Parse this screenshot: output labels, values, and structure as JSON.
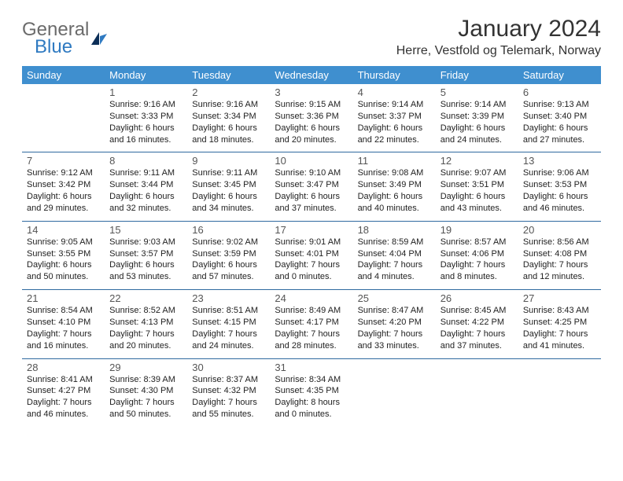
{
  "brand": {
    "word1": "General",
    "word2": "Blue"
  },
  "title": "January 2024",
  "location": "Herre, Vestfold og Telemark, Norway",
  "dayHeaders": [
    "Sunday",
    "Monday",
    "Tuesday",
    "Wednesday",
    "Thursday",
    "Friday",
    "Saturday"
  ],
  "colors": {
    "headerBg": "#3f8fcf",
    "headerText": "#ffffff",
    "rowBorder": "#2f6aa0",
    "textGray": "#6b6b6b",
    "brandBlue": "#2f7ac1"
  },
  "weeks": [
    [
      null,
      {
        "n": "1",
        "sr": "Sunrise: 9:16 AM",
        "ss": "Sunset: 3:33 PM",
        "dl": "Daylight: 6 hours and 16 minutes."
      },
      {
        "n": "2",
        "sr": "Sunrise: 9:16 AM",
        "ss": "Sunset: 3:34 PM",
        "dl": "Daylight: 6 hours and 18 minutes."
      },
      {
        "n": "3",
        "sr": "Sunrise: 9:15 AM",
        "ss": "Sunset: 3:36 PM",
        "dl": "Daylight: 6 hours and 20 minutes."
      },
      {
        "n": "4",
        "sr": "Sunrise: 9:14 AM",
        "ss": "Sunset: 3:37 PM",
        "dl": "Daylight: 6 hours and 22 minutes."
      },
      {
        "n": "5",
        "sr": "Sunrise: 9:14 AM",
        "ss": "Sunset: 3:39 PM",
        "dl": "Daylight: 6 hours and 24 minutes."
      },
      {
        "n": "6",
        "sr": "Sunrise: 9:13 AM",
        "ss": "Sunset: 3:40 PM",
        "dl": "Daylight: 6 hours and 27 minutes."
      }
    ],
    [
      {
        "n": "7",
        "sr": "Sunrise: 9:12 AM",
        "ss": "Sunset: 3:42 PM",
        "dl": "Daylight: 6 hours and 29 minutes."
      },
      {
        "n": "8",
        "sr": "Sunrise: 9:11 AM",
        "ss": "Sunset: 3:44 PM",
        "dl": "Daylight: 6 hours and 32 minutes."
      },
      {
        "n": "9",
        "sr": "Sunrise: 9:11 AM",
        "ss": "Sunset: 3:45 PM",
        "dl": "Daylight: 6 hours and 34 minutes."
      },
      {
        "n": "10",
        "sr": "Sunrise: 9:10 AM",
        "ss": "Sunset: 3:47 PM",
        "dl": "Daylight: 6 hours and 37 minutes."
      },
      {
        "n": "11",
        "sr": "Sunrise: 9:08 AM",
        "ss": "Sunset: 3:49 PM",
        "dl": "Daylight: 6 hours and 40 minutes."
      },
      {
        "n": "12",
        "sr": "Sunrise: 9:07 AM",
        "ss": "Sunset: 3:51 PM",
        "dl": "Daylight: 6 hours and 43 minutes."
      },
      {
        "n": "13",
        "sr": "Sunrise: 9:06 AM",
        "ss": "Sunset: 3:53 PM",
        "dl": "Daylight: 6 hours and 46 minutes."
      }
    ],
    [
      {
        "n": "14",
        "sr": "Sunrise: 9:05 AM",
        "ss": "Sunset: 3:55 PM",
        "dl": "Daylight: 6 hours and 50 minutes."
      },
      {
        "n": "15",
        "sr": "Sunrise: 9:03 AM",
        "ss": "Sunset: 3:57 PM",
        "dl": "Daylight: 6 hours and 53 minutes."
      },
      {
        "n": "16",
        "sr": "Sunrise: 9:02 AM",
        "ss": "Sunset: 3:59 PM",
        "dl": "Daylight: 6 hours and 57 minutes."
      },
      {
        "n": "17",
        "sr": "Sunrise: 9:01 AM",
        "ss": "Sunset: 4:01 PM",
        "dl": "Daylight: 7 hours and 0 minutes."
      },
      {
        "n": "18",
        "sr": "Sunrise: 8:59 AM",
        "ss": "Sunset: 4:04 PM",
        "dl": "Daylight: 7 hours and 4 minutes."
      },
      {
        "n": "19",
        "sr": "Sunrise: 8:57 AM",
        "ss": "Sunset: 4:06 PM",
        "dl": "Daylight: 7 hours and 8 minutes."
      },
      {
        "n": "20",
        "sr": "Sunrise: 8:56 AM",
        "ss": "Sunset: 4:08 PM",
        "dl": "Daylight: 7 hours and 12 minutes."
      }
    ],
    [
      {
        "n": "21",
        "sr": "Sunrise: 8:54 AM",
        "ss": "Sunset: 4:10 PM",
        "dl": "Daylight: 7 hours and 16 minutes."
      },
      {
        "n": "22",
        "sr": "Sunrise: 8:52 AM",
        "ss": "Sunset: 4:13 PM",
        "dl": "Daylight: 7 hours and 20 minutes."
      },
      {
        "n": "23",
        "sr": "Sunrise: 8:51 AM",
        "ss": "Sunset: 4:15 PM",
        "dl": "Daylight: 7 hours and 24 minutes."
      },
      {
        "n": "24",
        "sr": "Sunrise: 8:49 AM",
        "ss": "Sunset: 4:17 PM",
        "dl": "Daylight: 7 hours and 28 minutes."
      },
      {
        "n": "25",
        "sr": "Sunrise: 8:47 AM",
        "ss": "Sunset: 4:20 PM",
        "dl": "Daylight: 7 hours and 33 minutes."
      },
      {
        "n": "26",
        "sr": "Sunrise: 8:45 AM",
        "ss": "Sunset: 4:22 PM",
        "dl": "Daylight: 7 hours and 37 minutes."
      },
      {
        "n": "27",
        "sr": "Sunrise: 8:43 AM",
        "ss": "Sunset: 4:25 PM",
        "dl": "Daylight: 7 hours and 41 minutes."
      }
    ],
    [
      {
        "n": "28",
        "sr": "Sunrise: 8:41 AM",
        "ss": "Sunset: 4:27 PM",
        "dl": "Daylight: 7 hours and 46 minutes."
      },
      {
        "n": "29",
        "sr": "Sunrise: 8:39 AM",
        "ss": "Sunset: 4:30 PM",
        "dl": "Daylight: 7 hours and 50 minutes."
      },
      {
        "n": "30",
        "sr": "Sunrise: 8:37 AM",
        "ss": "Sunset: 4:32 PM",
        "dl": "Daylight: 7 hours and 55 minutes."
      },
      {
        "n": "31",
        "sr": "Sunrise: 8:34 AM",
        "ss": "Sunset: 4:35 PM",
        "dl": "Daylight: 8 hours and 0 minutes."
      },
      null,
      null,
      null
    ]
  ]
}
